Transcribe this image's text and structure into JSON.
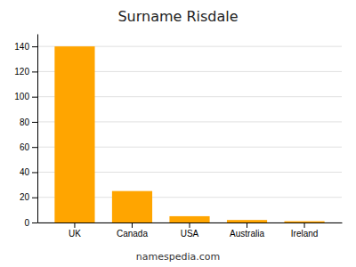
{
  "chart_data": {
    "type": "bar",
    "title": "Surname Risdale",
    "categories": [
      "UK",
      "Canada",
      "USA",
      "Australia",
      "Ireland"
    ],
    "values": [
      140,
      25,
      5,
      2,
      1
    ],
    "color": "#FFA500",
    "ylim": [
      0,
      150
    ],
    "yticks": [
      0,
      20,
      40,
      60,
      80,
      100,
      120,
      140
    ],
    "grid": true,
    "annotations": [
      "namespedia.com"
    ]
  }
}
